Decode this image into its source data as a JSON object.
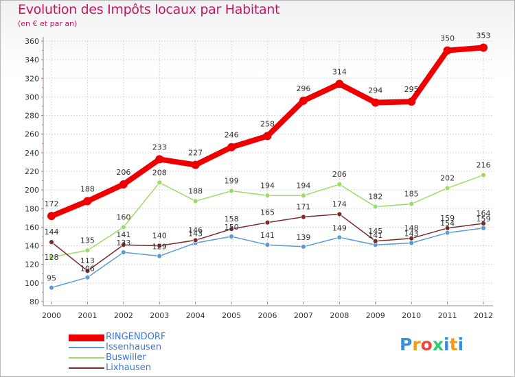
{
  "title": "Evolution des Impôts locaux par Habitant",
  "subtitle": "(en € et par an)",
  "logo": {
    "text": "Proxiti",
    "letters": [
      "P",
      "r",
      "o",
      "x",
      "i",
      "t",
      "i"
    ],
    "colors": [
      "#3b8fd6",
      "#f39c12",
      "#e74c3c",
      "#2ecc71",
      "#3b8fd6",
      "#f39c12",
      "#3b8fd6"
    ]
  },
  "chart_data": {
    "type": "line",
    "title": "Evolution des Impôts locaux par Habitant",
    "subtitle": "(en € et par an)",
    "xlabel": "",
    "ylabel": "",
    "x": [
      "2000",
      "2001",
      "2002",
      "2003",
      "2004",
      "2005",
      "2006",
      "2007",
      "2008",
      "2009",
      "2010",
      "2011",
      "2012"
    ],
    "ylim": [
      80,
      360
    ],
    "yticks": [
      80,
      100,
      120,
      140,
      160,
      180,
      200,
      220,
      240,
      260,
      280,
      300,
      320,
      340,
      360
    ],
    "grid": true,
    "legend_position": "bottom-left",
    "series": [
      {
        "name": "RINGENDORF",
        "color": "#ee0000",
        "values": [
          172,
          188,
          206,
          233,
          227,
          246,
          258,
          296,
          314,
          294,
          295,
          350,
          353
        ]
      },
      {
        "name": "Issenhausen",
        "color": "#5b9bd5",
        "values": [
          95,
          106,
          133,
          129,
          143,
          150,
          141,
          139,
          149,
          141,
          143,
          154,
          159
        ]
      },
      {
        "name": "Buswiller",
        "color": "#99dd66",
        "values": [
          128,
          135,
          160,
          208,
          188,
          199,
          194,
          194,
          206,
          182,
          185,
          202,
          216
        ]
      },
      {
        "name": "Lixhausen",
        "color": "#7a2a2a",
        "values": [
          144,
          113,
          141,
          140,
          146,
          158,
          165,
          171,
          174,
          145,
          148,
          159,
          164
        ]
      }
    ],
    "data_labels": [
      {
        "series": "RINGENDORF",
        "labels": [
          "172",
          "188",
          "206",
          "233",
          "227",
          "246",
          "258",
          "296",
          "314",
          "294",
          "295",
          "350",
          "353"
        ]
      },
      {
        "series": "Issenhausen",
        "labels": [
          "95",
          "106",
          "133",
          "129",
          "143",
          "150",
          "141",
          "139",
          "149",
          "141",
          "143",
          "154",
          "159"
        ]
      },
      {
        "series": "Buswiller",
        "labels": [
          "128",
          "135",
          "160",
          "208",
          "188",
          "199",
          "194",
          "194",
          "206",
          "182",
          "185",
          "202",
          "216"
        ]
      },
      {
        "series": "Lixhausen",
        "labels": [
          "144",
          "113",
          "141",
          "140",
          "146",
          "158",
          "165",
          "171",
          "174",
          "145",
          "148",
          "159",
          "164"
        ]
      }
    ]
  }
}
